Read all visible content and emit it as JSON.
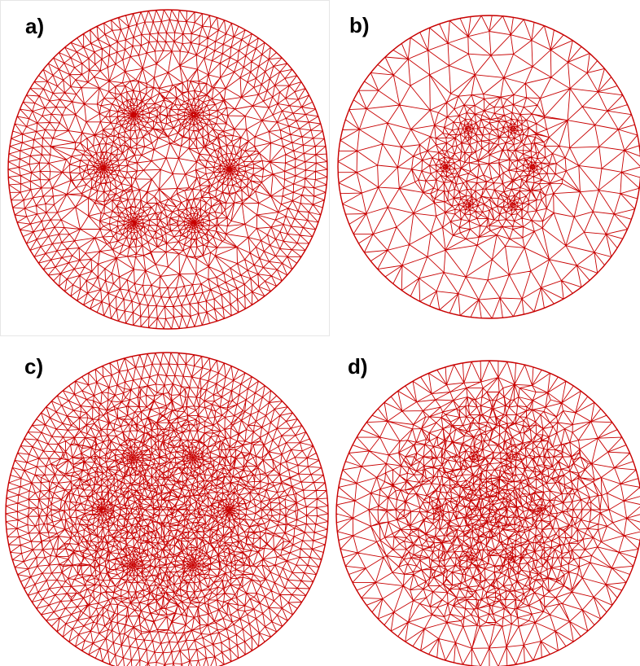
{
  "figure": {
    "panels": [
      {
        "label": "a)",
        "mesh": "refined-rings-with-hole-clusters"
      },
      {
        "label": "b)",
        "mesh": "coarse-with-hole-clusters"
      },
      {
        "label": "c)",
        "mesh": "refined-rings-radial-hole-fans"
      },
      {
        "label": "d)",
        "mesh": "radial-fans-toward-holes"
      }
    ],
    "colors": {
      "mesh_edge": "#c80000",
      "background": "#ffffff",
      "label": "#000000"
    }
  }
}
